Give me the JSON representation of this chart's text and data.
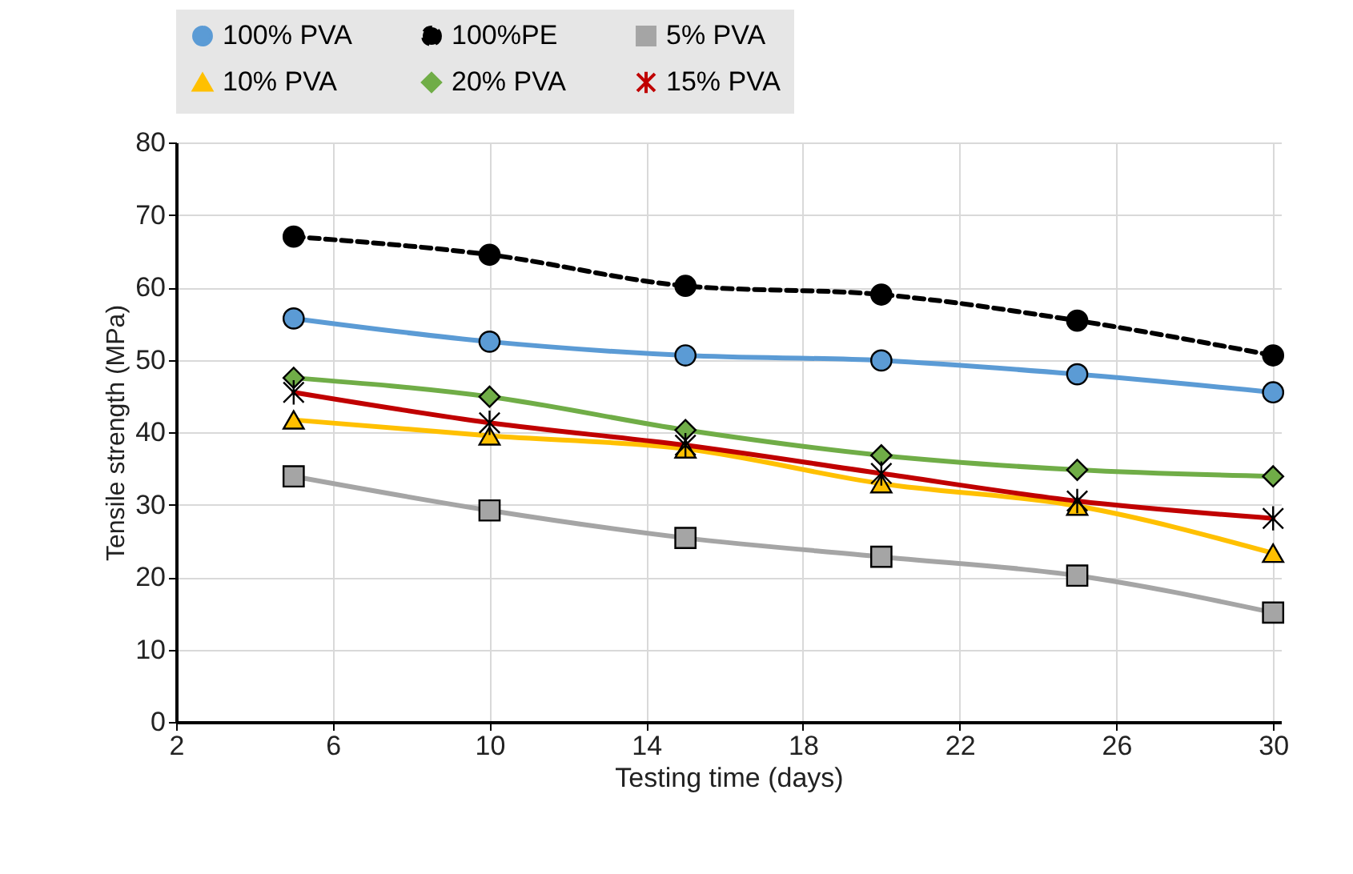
{
  "chart_data": {
    "type": "line",
    "xlabel": "Testing time (days)",
    "ylabel": "Tensile strength (MPa)",
    "x": [
      5,
      10,
      15,
      20,
      25,
      30
    ],
    "series": [
      {
        "name": "100% PVA",
        "color": "#5b9bd5",
        "marker": "circle",
        "line_style": "solid",
        "values": [
          55.7,
          52.5,
          50.6,
          49.9,
          48.0,
          45.5
        ]
      },
      {
        "name": "100%PE",
        "color": "#000000",
        "marker": "circle",
        "line_style": "dashed",
        "values": [
          67.0,
          64.5,
          60.2,
          59.0,
          55.4,
          50.6
        ]
      },
      {
        "name": "5% PVA",
        "color": "#a5a5a5",
        "marker": "square",
        "line_style": "solid",
        "values": [
          33.9,
          29.2,
          25.4,
          22.8,
          20.2,
          15.1
        ]
      },
      {
        "name": "10% PVA",
        "color": "#ffc000",
        "marker": "triangle",
        "line_style": "solid",
        "values": [
          41.7,
          39.5,
          37.7,
          32.9,
          29.8,
          23.3
        ]
      },
      {
        "name": "20% PVA",
        "color": "#70ad47",
        "marker": "diamond",
        "line_style": "solid",
        "values": [
          47.5,
          44.9,
          40.3,
          36.8,
          34.8,
          33.9
        ]
      },
      {
        "name": "15% PVA",
        "color": "#c00000",
        "marker": "cross",
        "line_style": "solid",
        "values": [
          45.5,
          41.3,
          38.2,
          34.3,
          30.5,
          28.1
        ]
      }
    ],
    "xlim": [
      2,
      30.2
    ],
    "xticks": [
      2,
      6,
      10,
      14,
      18,
      22,
      26,
      30
    ],
    "ylim": [
      0,
      80
    ],
    "yticks": [
      0,
      10,
      20,
      30,
      40,
      50,
      60,
      70,
      80
    ],
    "grid": true,
    "legend": "top"
  }
}
